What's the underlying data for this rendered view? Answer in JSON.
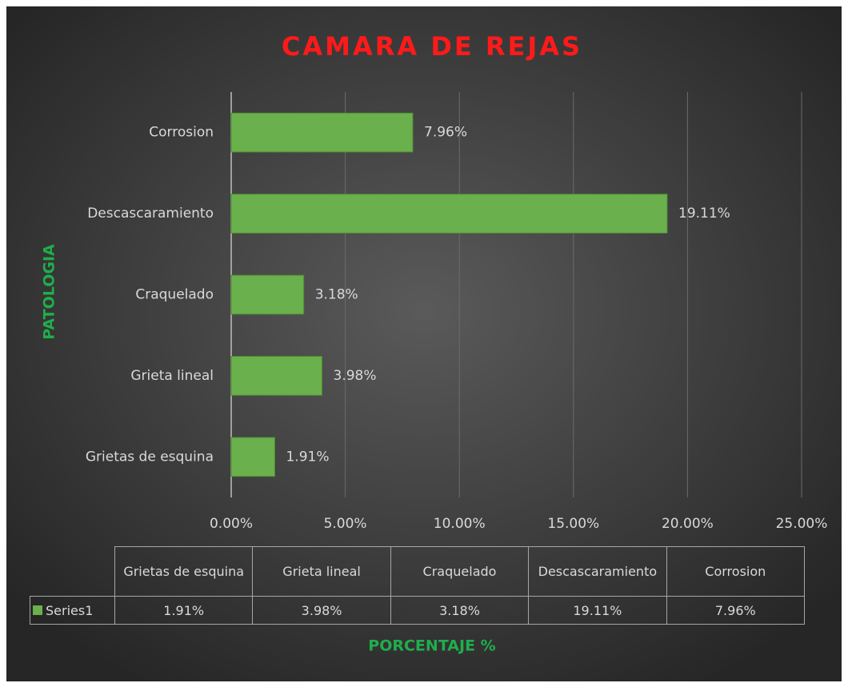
{
  "chart_data": {
    "type": "bar",
    "orientation": "horizontal",
    "title": "CAMARA DE REJAS",
    "x_label": "PORCENTAJE %",
    "y_label": "PATOLOGIA",
    "categories": [
      "Grietas de esquina",
      "Grieta lineal",
      "Craquelado",
      "Descascaramiento",
      "Corrosion"
    ],
    "series": [
      {
        "name": "Series1",
        "color": "#6ab04c",
        "values": [
          1.91,
          3.98,
          3.18,
          19.11,
          7.96
        ],
        "value_labels": [
          "1.91%",
          "3.98%",
          "3.18%",
          "19.11%",
          "7.96%"
        ]
      }
    ],
    "xlim": [
      0,
      25
    ],
    "xticks": [
      {
        "value": 0,
        "label": "0.00%"
      },
      {
        "value": 5,
        "label": "5.00%"
      },
      {
        "value": 10,
        "label": "10.00%"
      },
      {
        "value": 15,
        "label": "15.00%"
      },
      {
        "value": 20,
        "label": "20.00%"
      },
      {
        "value": 25,
        "label": "25.00%"
      }
    ],
    "grid": true,
    "data_table": true
  }
}
